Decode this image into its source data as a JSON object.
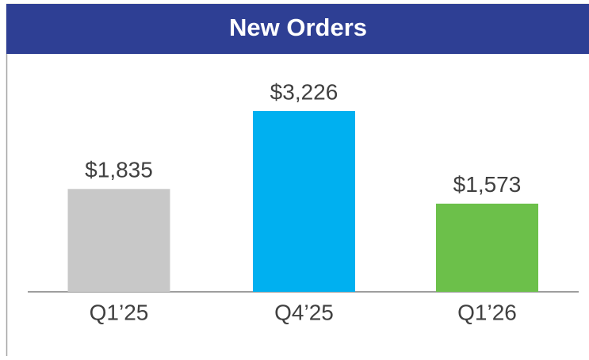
{
  "chart_data": {
    "type": "bar",
    "title": "New Orders",
    "categories": [
      "Q1’25",
      "Q4’25",
      "Q1’26"
    ],
    "values": [
      1835,
      3226,
      1573
    ],
    "value_labels": [
      "$1,835",
      "$3,226",
      "$1,573"
    ],
    "colors": [
      "#c8c8c8",
      "#00b0f0",
      "#6cc04a"
    ]
  }
}
